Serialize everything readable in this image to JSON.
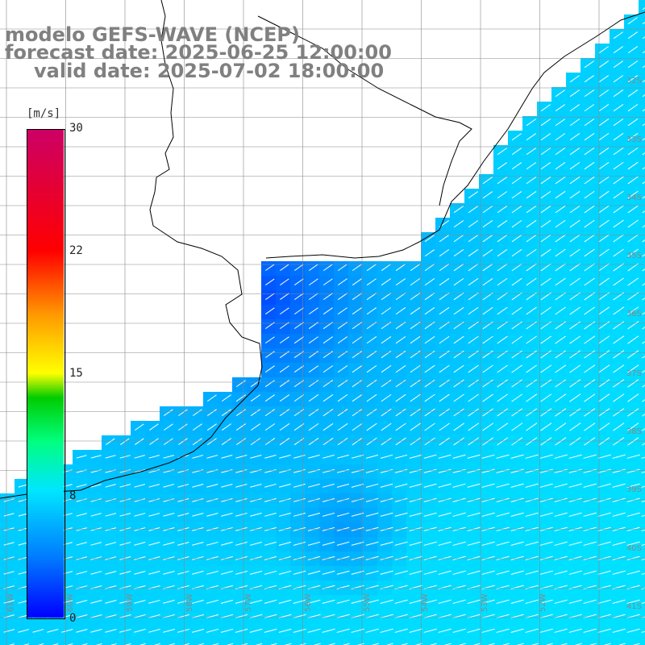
{
  "title": {
    "line1": "modelo GEFS-WAVE (NCEP)",
    "line2": "forecast date: 2025-06-25 12:00:00",
    "line3": "valid date: 2025-07-02 18:00:00"
  },
  "colorbar": {
    "unit": "[m/s]",
    "ticks": [
      "30",
      "22",
      "15",
      "8",
      "0"
    ],
    "min": 0,
    "max": 30,
    "colors": [
      "#0000ff",
      "#0078ff",
      "#00e6ff",
      "#00ff80",
      "#00cc00",
      "#ffff00",
      "#ff9900",
      "#ff0000",
      "#cc0066"
    ]
  },
  "map": {
    "variable": "wind speed (10 m) with direction arrows",
    "land_color": "#ffffff",
    "coast_color": "#000000",
    "grid_color": "#888888",
    "lat_labels": [
      "32S",
      "33S",
      "34S",
      "35S",
      "36S",
      "37S",
      "38S",
      "39S",
      "40S",
      "41S"
    ],
    "lon_labels": [
      "61W",
      "60W",
      "59W",
      "58W",
      "57W",
      "56W",
      "55W",
      "54W",
      "53W",
      "52W"
    ]
  }
}
